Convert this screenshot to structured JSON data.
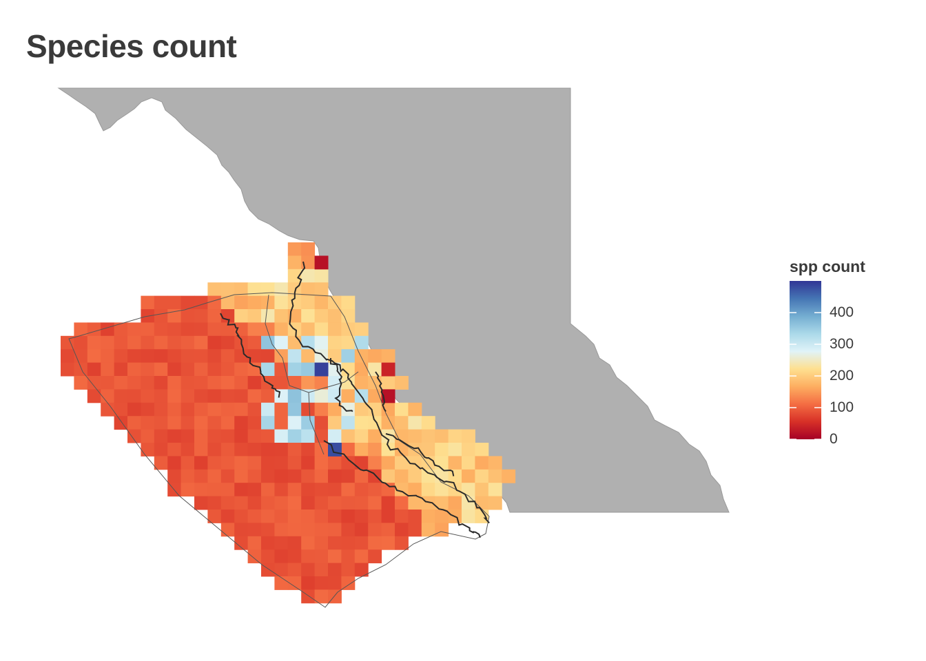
{
  "title": "Species count",
  "legend": {
    "title": "spp count",
    "min": 0,
    "max": 500,
    "breaks": [
      0,
      100,
      200,
      300,
      400
    ],
    "labels": [
      "0",
      "100",
      "200",
      "300",
      "400"
    ],
    "palette": [
      "#a50026",
      "#d73027",
      "#f46d43",
      "#fdae61",
      "#fee090",
      "#e0f3f8",
      "#abd9e9",
      "#74add1",
      "#4575b4",
      "#313695"
    ]
  },
  "colors": {
    "land": "#b0b0b0",
    "land_edge": "#999999",
    "coastline": "#2a2a2a",
    "boundary": "#555555"
  },
  "grid_summary": {
    "offshore_typical": 80,
    "shelf_typical": 170,
    "hotspots": [
      490,
      480
    ],
    "low_inlet_cells": [
      20,
      40
    ]
  }
}
